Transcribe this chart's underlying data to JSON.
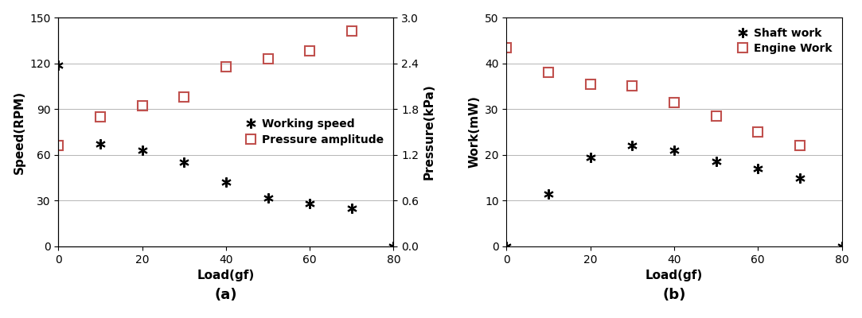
{
  "subplot_a": {
    "speed_x": [
      0,
      10,
      20,
      30,
      40,
      50,
      60,
      70,
      80
    ],
    "speed_y": [
      119,
      67,
      63,
      55,
      42,
      32,
      28,
      25,
      0
    ],
    "pressure_x": [
      0,
      10,
      20,
      30,
      40,
      50,
      60,
      70
    ],
    "pressure_y": [
      1.32,
      1.7,
      1.84,
      1.96,
      2.36,
      2.46,
      2.56,
      2.82
    ],
    "xlabel": "Load(gf)",
    "ylabel_left": "Speed(RPM)",
    "ylabel_right": "Pressure(kPa)",
    "label_a": "(a)",
    "legend_speed": "Working speed",
    "legend_pressure": "Pressure amplitude",
    "xlim": [
      0,
      80
    ],
    "ylim_left": [
      0,
      150
    ],
    "ylim_right": [
      0,
      3
    ],
    "xticks": [
      0,
      20,
      40,
      60,
      80
    ],
    "yticks_left": [
      0,
      30,
      60,
      90,
      120,
      150
    ],
    "yticks_right": [
      0,
      0.6,
      1.2,
      1.8,
      2.4,
      3.0
    ]
  },
  "subplot_b": {
    "shaft_x": [
      0,
      10,
      20,
      30,
      40,
      50,
      60,
      70,
      80
    ],
    "shaft_y": [
      0,
      11.5,
      19.5,
      22,
      21,
      18.5,
      17,
      15,
      0
    ],
    "engine_x": [
      0,
      10,
      20,
      30,
      40,
      50,
      60,
      70
    ],
    "engine_y": [
      43.5,
      38,
      35.5,
      35,
      31.5,
      28.5,
      25,
      22
    ],
    "xlabel": "Load(gf)",
    "ylabel": "Work(mW)",
    "label_b": "(b)",
    "legend_shaft": "Shaft work",
    "legend_engine": "Engine Work",
    "xlim": [
      0,
      80
    ],
    "ylim": [
      0,
      50
    ],
    "xticks": [
      0,
      20,
      40,
      60,
      80
    ],
    "yticks": [
      0,
      10,
      20,
      30,
      40,
      50
    ]
  },
  "color_black": "#000000",
  "color_red": "#c0504d",
  "figsize": [
    10.83,
    4.0
  ],
  "dpi": 100
}
